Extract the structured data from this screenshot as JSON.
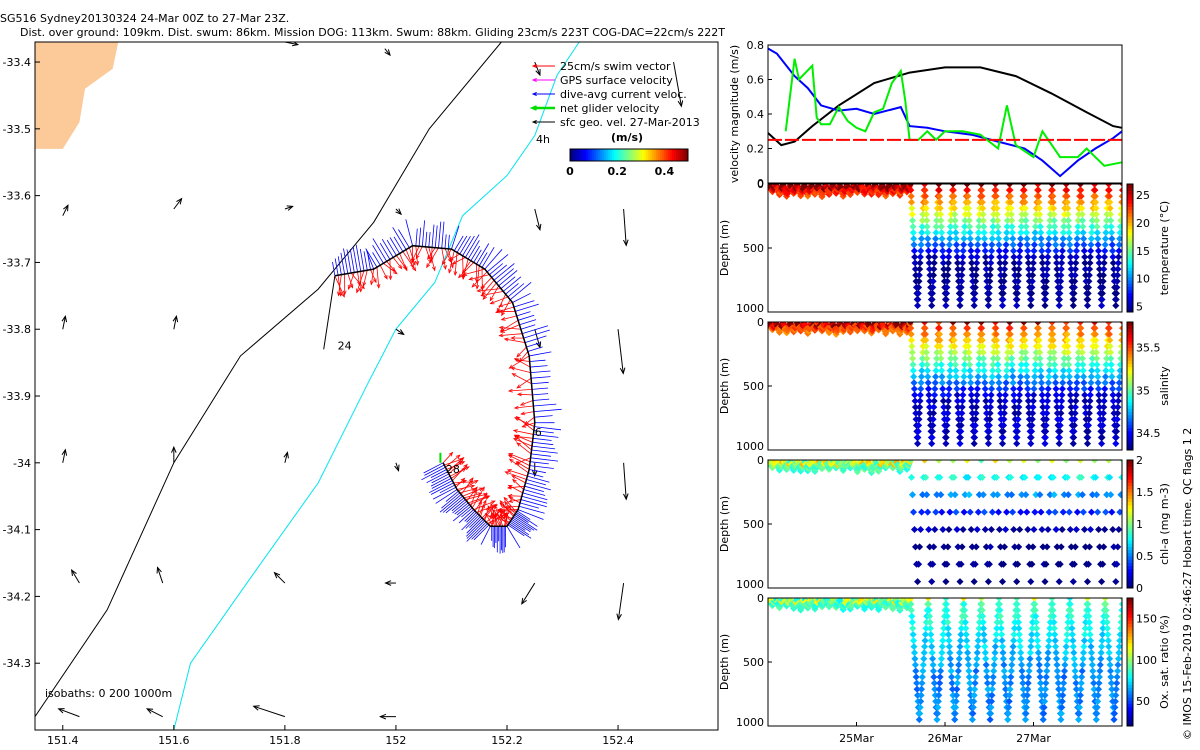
{
  "header": {
    "line1": "SG516 Sydney20130324 24-Mar 00Z to 27-Mar 23Z.",
    "line2": "Dist. over ground: 109km. Dist. swum: 86km. Mission DOG: 113km. Swum: 88km. Gliding 23cm/s 223T COG-DAC=22cm/s 222T"
  },
  "credit": "© IMOS 15-Feb-2019 02:46:27 Hobart time. QC flags 1  2",
  "colors": {
    "land": "#fcc998",
    "isobath_200": "#000000",
    "isobath_1000": "#00e5ee",
    "swim": "#ff0000",
    "gps": "#ff00ff",
    "dac": "#0000ff",
    "net": "#00dd00",
    "sfc_geo": "#000000"
  },
  "chart_data": [
    {
      "type": "map",
      "xlim": [
        151.35,
        152.58
      ],
      "ylim": [
        -34.4,
        -33.37
      ],
      "x_ticks": [
        151.4,
        151.6,
        151.8,
        152,
        152.2,
        152.4
      ],
      "x_tick_labels": [
        "151.4",
        "151.6",
        "151.8",
        "152",
        "152.2",
        "152.4"
      ],
      "y_ticks": [
        -33.4,
        -33.5,
        -33.6,
        -33.7,
        -33.8,
        -33.9,
        -34,
        -34.1,
        -34.2,
        -34.3
      ],
      "y_tick_labels": [
        "-33.4",
        "-33.5",
        "-33.6",
        "-33.7",
        "-33.8",
        "-33.9",
        "-34",
        "-34.1",
        "-34.2",
        "-34.3"
      ],
      "isobath_label": "isobaths: 0   200  1000m",
      "legend": {
        "items": [
          "25cm/s swim vector",
          "GPS surface velocity",
          "dive-avg current veloc.",
          "net glider velocity",
          "sfc geo. vel. 27-Mar-2013"
        ],
        "interval": "4h",
        "units": "(m/s)",
        "colorbar_ticks": [
          "0",
          "0.2",
          "0.4"
        ],
        "colorbar_range": [
          0,
          0.5
        ]
      },
      "day_labels": [
        {
          "text": "24",
          "lon": 151.895,
          "lat": -33.83
        },
        {
          "text": "6",
          "lon": 152.25,
          "lat": -33.96
        },
        {
          "text": "28",
          "lon": 152.09,
          "lat": -34.015
        }
      ],
      "track": [
        [
          151.89,
          -33.72
        ],
        [
          151.96,
          -33.71
        ],
        [
          152.03,
          -33.675
        ],
        [
          152.1,
          -33.68
        ],
        [
          152.16,
          -33.71
        ],
        [
          152.21,
          -33.76
        ],
        [
          152.24,
          -33.84
        ],
        [
          152.25,
          -33.94
        ],
        [
          152.24,
          -34.01
        ],
        [
          152.22,
          -34.07
        ],
        [
          152.2,
          -34.095
        ],
        [
          152.17,
          -34.095
        ],
        [
          152.14,
          -34.07
        ],
        [
          152.11,
          -34.04
        ],
        [
          152.085,
          -34.0
        ]
      ],
      "track_start": [
        [
          151.87,
          -33.83
        ],
        [
          151.89,
          -33.72
        ]
      ],
      "isobath_200": [
        [
          151.35,
          -34.38
        ],
        [
          151.48,
          -34.22
        ],
        [
          151.6,
          -34.0
        ],
        [
          151.72,
          -33.84
        ],
        [
          151.86,
          -33.74
        ],
        [
          151.96,
          -33.64
        ],
        [
          152.06,
          -33.5
        ],
        [
          152.19,
          -33.37
        ]
      ],
      "isobath_1000": [
        [
          151.6,
          -34.4
        ],
        [
          151.63,
          -34.3
        ],
        [
          151.74,
          -34.17
        ],
        [
          151.86,
          -34.03
        ],
        [
          151.95,
          -33.88
        ],
        [
          152.0,
          -33.8
        ],
        [
          152.07,
          -33.73
        ],
        [
          152.12,
          -33.63
        ],
        [
          152.2,
          -33.57
        ],
        [
          152.25,
          -33.51
        ],
        [
          152.29,
          -33.42
        ],
        [
          152.33,
          -33.37
        ]
      ],
      "land": [
        [
          151.35,
          -33.37
        ],
        [
          151.5,
          -33.37
        ],
        [
          151.49,
          -33.41
        ],
        [
          151.44,
          -33.44
        ],
        [
          151.43,
          -33.49
        ],
        [
          151.4,
          -33.53
        ],
        [
          151.35,
          -33.53
        ]
      ],
      "geo_vectors": [
        [
          151.8,
          -33.37,
          0.05,
          -0.01
        ],
        [
          151.98,
          -33.38,
          0.02,
          -0.025
        ],
        [
          152.25,
          -33.4,
          0.02,
          -0.05
        ],
        [
          152.5,
          -33.4,
          0.03,
          -0.17
        ],
        [
          151.4,
          -33.63,
          0.02,
          0.04
        ],
        [
          151.6,
          -33.62,
          0.03,
          0.04
        ],
        [
          151.8,
          -33.62,
          0.03,
          0.01
        ],
        [
          152.0,
          -33.62,
          0.02,
          -0.02
        ],
        [
          152.25,
          -33.62,
          0.02,
          -0.08
        ],
        [
          152.41,
          -33.62,
          0.01,
          -0.14
        ],
        [
          151.4,
          -33.8,
          0.01,
          0.05
        ],
        [
          151.6,
          -33.8,
          0.01,
          0.05
        ],
        [
          151.78,
          -33.8,
          0.0,
          0.0
        ],
        [
          152.0,
          -33.8,
          0.03,
          -0.02
        ],
        [
          152.25,
          -33.8,
          0.02,
          -0.07
        ],
        [
          152.4,
          -33.8,
          0.02,
          -0.17
        ],
        [
          151.4,
          -34.0,
          0.01,
          0.05
        ],
        [
          151.6,
          -34.0,
          0.0,
          0.06
        ],
        [
          151.8,
          -34.0,
          0.01,
          0.04
        ],
        [
          152.0,
          -34.0,
          0.01,
          -0.03
        ],
        [
          152.25,
          -34.0,
          0.0,
          -0.05
        ],
        [
          152.41,
          -34.0,
          0.01,
          -0.14
        ],
        [
          151.43,
          -34.18,
          -0.03,
          0.05
        ],
        [
          151.58,
          -34.18,
          -0.02,
          0.06
        ],
        [
          151.8,
          -34.18,
          -0.04,
          0.04
        ],
        [
          152.0,
          -34.18,
          -0.04,
          0.0
        ],
        [
          152.25,
          -34.18,
          -0.05,
          -0.08
        ],
        [
          152.41,
          -34.18,
          -0.02,
          -0.14
        ],
        [
          151.43,
          -34.38,
          -0.08,
          0.03
        ],
        [
          151.58,
          -34.38,
          -0.06,
          0.03
        ],
        [
          151.8,
          -34.38,
          -0.12,
          0.04
        ],
        [
          152.0,
          -34.38,
          -0.06,
          0.0
        ]
      ]
    },
    {
      "type": "line",
      "ylabel": "velocity magnitude (m/s)",
      "ylim": [
        0,
        0.8
      ],
      "x_range": [
        24,
        28
      ],
      "y_ticks": [
        0,
        0.2,
        0.4,
        0.6,
        0.8
      ],
      "y_tick_labels": [
        "0",
        "0.2",
        "0.4",
        "0.6",
        "0.8"
      ],
      "series": [
        {
          "color": "#000000",
          "x": [
            24,
            24.15,
            24.3,
            24.5,
            24.8,
            25.2,
            25.6,
            26.0,
            26.4,
            26.8,
            27.2,
            27.6,
            27.9,
            28.0
          ],
          "y": [
            0.29,
            0.22,
            0.24,
            0.33,
            0.45,
            0.58,
            0.64,
            0.67,
            0.67,
            0.62,
            0.52,
            0.41,
            0.33,
            0.32
          ]
        },
        {
          "color": "#0000ff",
          "x": [
            24,
            24.1,
            24.3,
            24.45,
            24.6,
            24.8,
            25.0,
            25.2,
            25.5,
            25.6,
            25.8,
            26.0,
            26.3,
            26.6,
            26.9,
            27.1,
            27.3,
            27.5,
            27.7,
            27.9,
            28.0
          ],
          "y": [
            0.78,
            0.75,
            0.62,
            0.55,
            0.45,
            0.42,
            0.43,
            0.4,
            0.44,
            0.33,
            0.32,
            0.3,
            0.28,
            0.24,
            0.2,
            0.13,
            0.04,
            0.13,
            0.2,
            0.26,
            0.3
          ]
        },
        {
          "color": "#00ee00",
          "x": [
            24.2,
            24.3,
            24.35,
            24.5,
            24.55,
            24.6,
            24.7,
            24.8,
            24.9,
            25.0,
            25.1,
            25.2,
            25.3,
            25.4,
            25.5,
            25.55,
            25.6,
            25.7,
            25.8,
            25.9,
            26.0,
            26.2,
            26.4,
            26.6,
            26.7,
            26.8,
            27.0,
            27.1,
            27.3,
            27.5,
            27.6,
            27.8,
            28.0
          ],
          "y": [
            0.3,
            0.72,
            0.6,
            0.68,
            0.38,
            0.34,
            0.34,
            0.44,
            0.36,
            0.32,
            0.3,
            0.41,
            0.43,
            0.58,
            0.65,
            0.48,
            0.25,
            0.25,
            0.3,
            0.25,
            0.3,
            0.3,
            0.28,
            0.2,
            0.45,
            0.22,
            0.15,
            0.3,
            0.15,
            0.15,
            0.2,
            0.1,
            0.12
          ]
        }
      ],
      "reference_line": {
        "y": 0.25,
        "color": "#ff0000"
      }
    },
    {
      "type": "scatter",
      "ylabel": "Depth (m)",
      "colorbar_label": "temperature (°C)",
      "x_range": [
        24,
        28
      ],
      "y_range": [
        0,
        1000
      ],
      "y_ticks": [
        0,
        500,
        1000
      ],
      "y_tick_labels": [
        "0",
        "500",
        "1000"
      ],
      "colorbar_ticks": [
        "5",
        "10",
        "15",
        "20",
        "25"
      ],
      "colorbar_range": [
        4,
        27
      ],
      "shallow_until": 25.55,
      "profile_depth": 950,
      "dive_period": 0.16,
      "surface_value": 25.5,
      "deep_value": 4.5
    },
    {
      "type": "scatter",
      "ylabel": "Depth (m)",
      "colorbar_label": "salinity",
      "x_range": [
        24,
        28
      ],
      "y_range": [
        0,
        1000
      ],
      "y_ticks": [
        0,
        500,
        1000
      ],
      "y_tick_labels": [
        "0",
        "500",
        "1000"
      ],
      "colorbar_ticks": [
        "34.5",
        "35",
        "35.5"
      ],
      "colorbar_range": [
        34.3,
        35.8
      ],
      "shallow_until": 25.55,
      "profile_depth": 950,
      "dive_period": 0.16,
      "surface_value": 35.6,
      "deep_value": 34.4
    },
    {
      "type": "scatter",
      "ylabel": "Depth (m)",
      "colorbar_label": "chl-a (mg m-3)",
      "x_range": [
        24,
        28
      ],
      "y_range": [
        0,
        1000
      ],
      "y_ticks": [
        0,
        500,
        1000
      ],
      "y_tick_labels": [
        "0",
        "500",
        "1000"
      ],
      "colorbar_ticks": [
        "0",
        "0.5",
        "1",
        "1.5",
        "2"
      ],
      "colorbar_range": [
        0,
        2
      ],
      "shallow_until": 25.55,
      "profile_depth": 950,
      "dive_period": 0.16,
      "surface_value": 1.0,
      "deep_value": 0.0,
      "sparse": true
    },
    {
      "type": "scatter",
      "ylabel": "Depth (m)",
      "colorbar_label": "Ox. sat. ratio (%)",
      "x_range": [
        24,
        28
      ],
      "y_range": [
        0,
        1000
      ],
      "y_ticks": [
        0,
        500,
        1000
      ],
      "y_tick_labels": [
        "0",
        "500",
        "1000"
      ],
      "x_ticks": [
        25,
        26,
        27
      ],
      "x_tick_labels": [
        "25Mar",
        "26Mar",
        "27Mar"
      ],
      "colorbar_ticks": [
        "50",
        "100",
        "150"
      ],
      "colorbar_range": [
        20,
        175
      ],
      "shallow_until": 25.55,
      "profile_depth": 950,
      "dive_period": 0.2,
      "surface_value": 90,
      "deep_value": 60
    }
  ]
}
